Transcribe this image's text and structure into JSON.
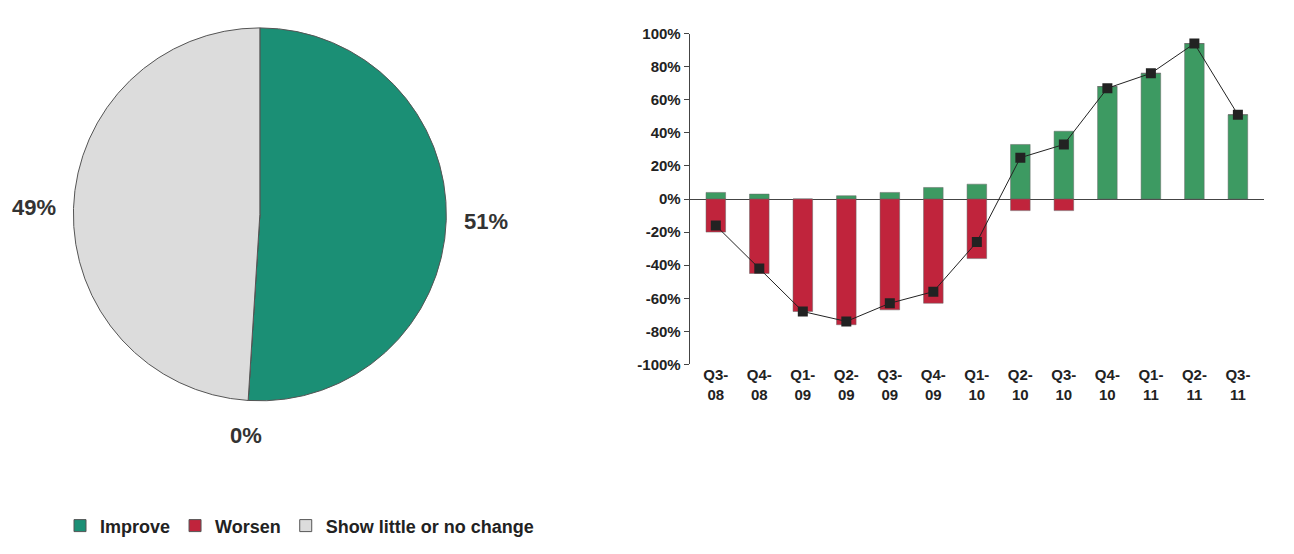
{
  "chart_data": [
    {
      "type": "pie",
      "categories": [
        "Improve",
        "Worsen",
        "Show little or no change"
      ],
      "values": [
        51,
        0,
        49
      ],
      "value_labels": [
        "51%",
        "0%",
        "49%"
      ],
      "colors": [
        "#1b8f75",
        "#c0243c",
        "#dcdcdc"
      ],
      "data_labels": true,
      "legend": "bottom left"
    },
    {
      "type": "bar",
      "categories": [
        "Q3-08",
        "Q4-08",
        "Q1-09",
        "Q2-09",
        "Q3-09",
        "Q4-09",
        "Q1-10",
        "Q2-10",
        "Q3-10",
        "Q4-10",
        "Q1-11",
        "Q2-11",
        "Q3-11"
      ],
      "series": [
        {
          "name": "Improve",
          "color": "#3d9a62",
          "values": [
            4,
            3,
            0,
            2,
            4,
            7,
            9,
            33,
            41,
            68,
            76,
            94,
            51
          ]
        },
        {
          "name": "Worsen",
          "color": "#c0243c",
          "values": [
            -20,
            -45,
            -68,
            -76,
            -67,
            -63,
            -36,
            -7,
            -7,
            0,
            0,
            0,
            0
          ]
        },
        {
          "type": "line",
          "color": "#222222",
          "marker": "square",
          "values": [
            -16,
            -42,
            -68,
            -74,
            -63,
            -56,
            -26,
            25,
            33,
            67,
            76,
            94,
            51
          ]
        }
      ],
      "stacked": true,
      "ylim": [
        -100,
        100
      ],
      "yticks": [
        {
          "value": -100,
          "label": "-100%"
        },
        {
          "value": -80,
          "label": "-80%"
        },
        {
          "value": -60,
          "label": "-60%"
        },
        {
          "value": -40,
          "label": "-40%"
        },
        {
          "value": -20,
          "label": "-20%"
        },
        {
          "value": 0,
          "label": "0%"
        },
        {
          "value": 20,
          "label": "20%"
        },
        {
          "value": 40,
          "label": "40%"
        },
        {
          "value": 60,
          "label": "60%"
        },
        {
          "value": 80,
          "label": "80%"
        },
        {
          "value": 100,
          "label": "100%"
        }
      ],
      "grid": false
    }
  ]
}
